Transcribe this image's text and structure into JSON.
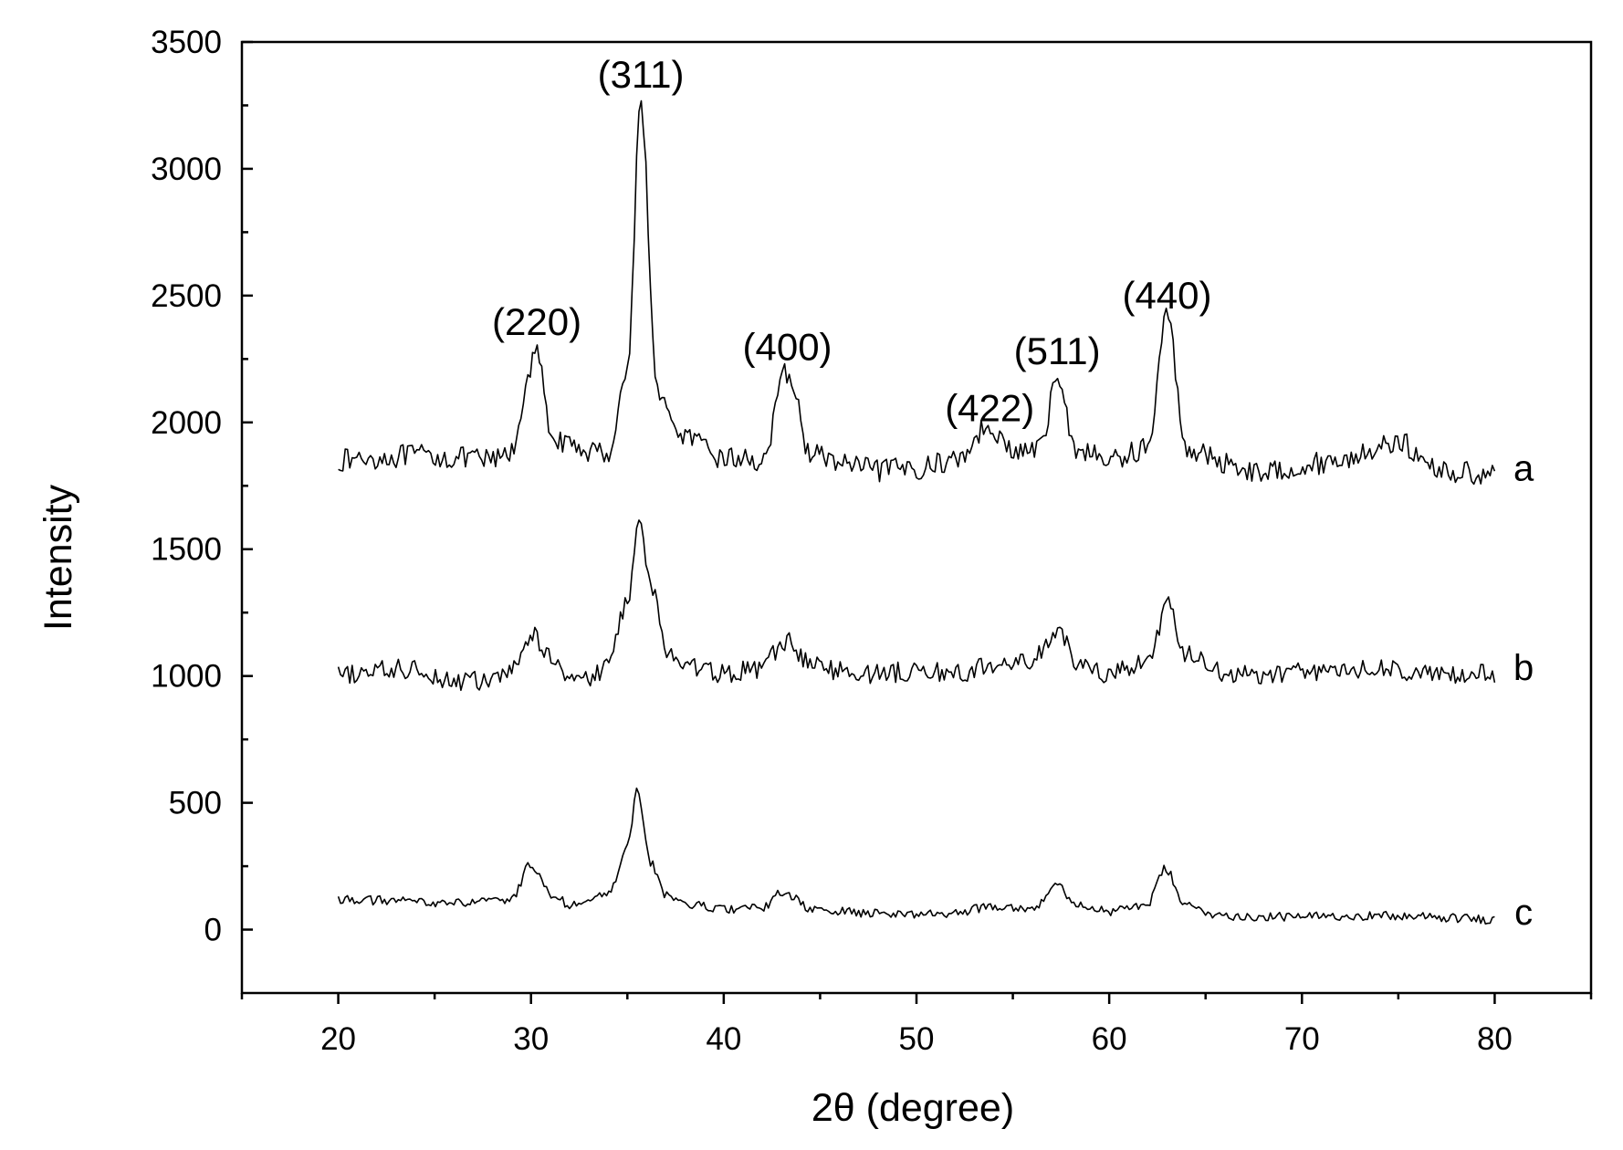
{
  "chart_data": {
    "type": "line",
    "title": "",
    "xlabel": "2θ (degree)",
    "ylabel": "Intensity",
    "xlim": [
      15,
      85
    ],
    "ylim": [
      -250,
      3500
    ],
    "x_ticks": [
      20,
      30,
      40,
      50,
      60,
      70,
      80
    ],
    "y_ticks": [
      0,
      500,
      1000,
      1500,
      2000,
      2500,
      3000,
      3500
    ],
    "grid": false,
    "legend": "none",
    "series": [
      {
        "name": "a",
        "x": [
          20,
          22,
          24,
          26,
          28,
          29,
          29.8,
          30.3,
          31,
          32,
          34,
          35,
          35.7,
          36.5,
          37.5,
          40,
          42,
          43.3,
          44.5,
          46,
          48,
          50,
          52,
          53.8,
          55,
          56.5,
          57.3,
          58.2,
          60,
          62,
          63,
          64,
          66,
          68,
          70,
          72,
          74,
          75,
          76.5,
          78,
          80
        ],
        "y": [
          1850,
          1860,
          1870,
          1860,
          1850,
          1880,
          2150,
          2290,
          1960,
          1900,
          1880,
          2200,
          3280,
          2150,
          1960,
          1860,
          1850,
          2200,
          1880,
          1840,
          1810,
          1820,
          1850,
          1990,
          1880,
          1900,
          2200,
          1900,
          1850,
          1900,
          2420,
          1900,
          1840,
          1800,
          1830,
          1850,
          1900,
          1930,
          1830,
          1800,
          1800
        ]
      },
      {
        "name": "b",
        "x": [
          20,
          22,
          24,
          26,
          28,
          29,
          30,
          31,
          32,
          33,
          34,
          35,
          35.6,
          36.3,
          37,
          38,
          40,
          42,
          43.2,
          44.5,
          46,
          48,
          50,
          52,
          54,
          56,
          57.3,
          58.5,
          60,
          62,
          63,
          64,
          66,
          68,
          70,
          72,
          74,
          76,
          78,
          80
        ],
        "y": [
          1000,
          1020,
          1030,
          980,
          980,
          1020,
          1160,
          1080,
          1010,
          980,
          1050,
          1300,
          1590,
          1340,
          1100,
          1040,
          1010,
          1030,
          1140,
          1050,
          1020,
          1010,
          1020,
          1010,
          1040,
          1060,
          1170,
          1040,
          1010,
          1050,
          1280,
          1080,
          1010,
          1000,
          1020,
          1020,
          1030,
          1010,
          1000,
          1010
        ]
      },
      {
        "name": "c",
        "x": [
          20,
          22,
          24,
          26,
          28,
          29,
          30,
          31,
          32,
          33,
          34,
          35,
          35.5,
          36.2,
          37,
          38,
          40,
          42,
          43.1,
          44.5,
          46,
          48,
          50,
          52,
          54,
          56,
          57.2,
          58.5,
          60,
          62,
          62.9,
          64,
          66,
          68,
          70,
          72,
          74,
          76,
          78,
          80
        ],
        "y": [
          120,
          115,
          110,
          105,
          110,
          120,
          260,
          140,
          100,
          110,
          140,
          320,
          560,
          260,
          140,
          100,
          80,
          85,
          150,
          80,
          70,
          65,
          60,
          65,
          95,
          85,
          170,
          100,
          70,
          100,
          240,
          90,
          55,
          50,
          50,
          55,
          55,
          50,
          45,
          40
        ]
      }
    ],
    "series_labels": [
      {
        "text": "a",
        "x": 81.5,
        "y": 1770
      },
      {
        "text": "b",
        "x": 81.5,
        "y": 985
      },
      {
        "text": "c",
        "x": 81.5,
        "y": 20
      }
    ],
    "annotations": [
      {
        "text": "(220)",
        "x": 30.3,
        "y": 2345
      },
      {
        "text": "(311)",
        "x": 35.7,
        "y": 3320
      },
      {
        "text": "(400)",
        "x": 43.3,
        "y": 2245
      },
      {
        "text": "(422)",
        "x": 53.8,
        "y": 2005
      },
      {
        "text": "(511)",
        "x": 57.3,
        "y": 2230
      },
      {
        "text": "(440)",
        "x": 63.0,
        "y": 2450
      }
    ]
  }
}
